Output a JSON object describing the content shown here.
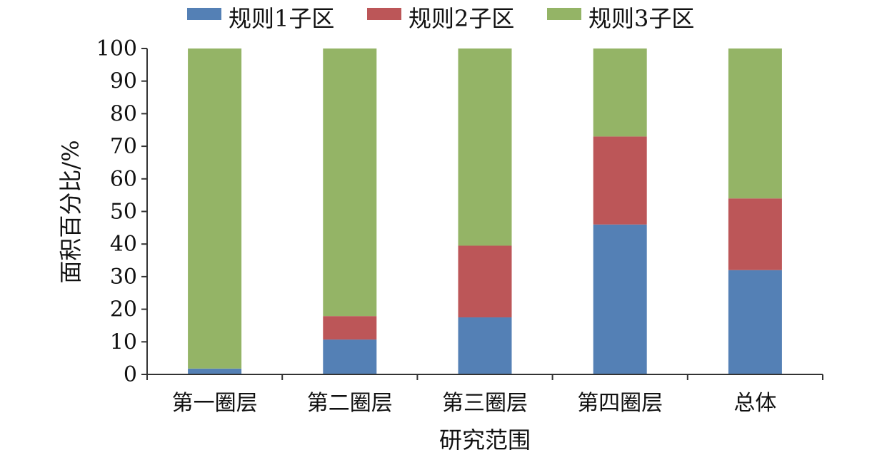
{
  "chart_data": {
    "type": "bar",
    "stacked": true,
    "xlabel": "研究范围",
    "ylabel": "面积百分比/%",
    "ylim": [
      0,
      100
    ],
    "yticks": [
      0,
      10,
      20,
      30,
      40,
      50,
      60,
      70,
      80,
      90,
      100
    ],
    "grid": false,
    "legend_position": "top",
    "categories": [
      "第一圈层",
      "第二圈层",
      "第三圈层",
      "第四圈层",
      "总体"
    ],
    "series": [
      {
        "name": "规则1子区",
        "color": "#5480b5",
        "values": [
          1.8,
          10.7,
          17.5,
          46.0,
          32.0
        ]
      },
      {
        "name": "规则2子区",
        "color": "#bc5658",
        "values": [
          0.0,
          7.2,
          22.0,
          27.0,
          22.0
        ]
      },
      {
        "name": "规则3子区",
        "color": "#94b466",
        "values": [
          98.2,
          82.1,
          60.5,
          27.0,
          46.0
        ]
      }
    ]
  }
}
